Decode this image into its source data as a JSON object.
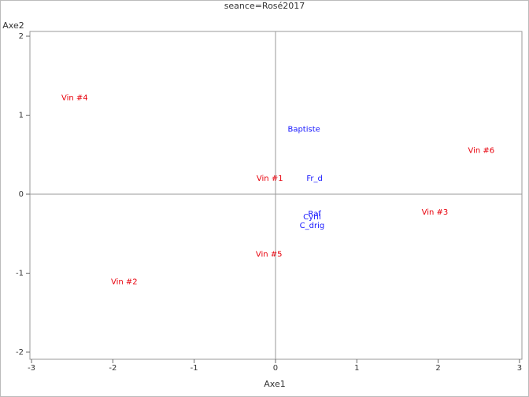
{
  "chart_data": {
    "type": "scatter",
    "title": "seance=Rosé2017",
    "x_label": "Axe1",
    "y_label": "Axe2",
    "xlim": [
      -3.02,
      3.03
    ],
    "ylim": [
      -2.09,
      2.06
    ],
    "xticks": [
      -3,
      -2,
      -1,
      0,
      1,
      2,
      3
    ],
    "yticks": [
      -2,
      -1,
      0,
      1,
      2
    ],
    "reference_lines": true,
    "series": [
      {
        "color": "#e8000b",
        "labels": [
          "Vin #4",
          "Vin #6",
          "Vin #1",
          "Vin #3",
          "Vin #5",
          "Vin #2"
        ],
        "x": [
          -2.47,
          2.53,
          -0.07,
          1.96,
          -0.08,
          -1.86
        ],
        "y": [
          1.22,
          0.55,
          0.2,
          -0.23,
          -0.76,
          -1.11
        ]
      },
      {
        "color": "#1a1aff",
        "labels": [
          "Baptiste",
          "Fr_d",
          "Raf",
          "Cyril",
          "C_drig"
        ],
        "x": [
          0.35,
          0.48,
          0.48,
          0.45,
          0.45
        ],
        "y": [
          0.82,
          0.2,
          -0.25,
          -0.29,
          -0.4
        ]
      }
    ]
  }
}
